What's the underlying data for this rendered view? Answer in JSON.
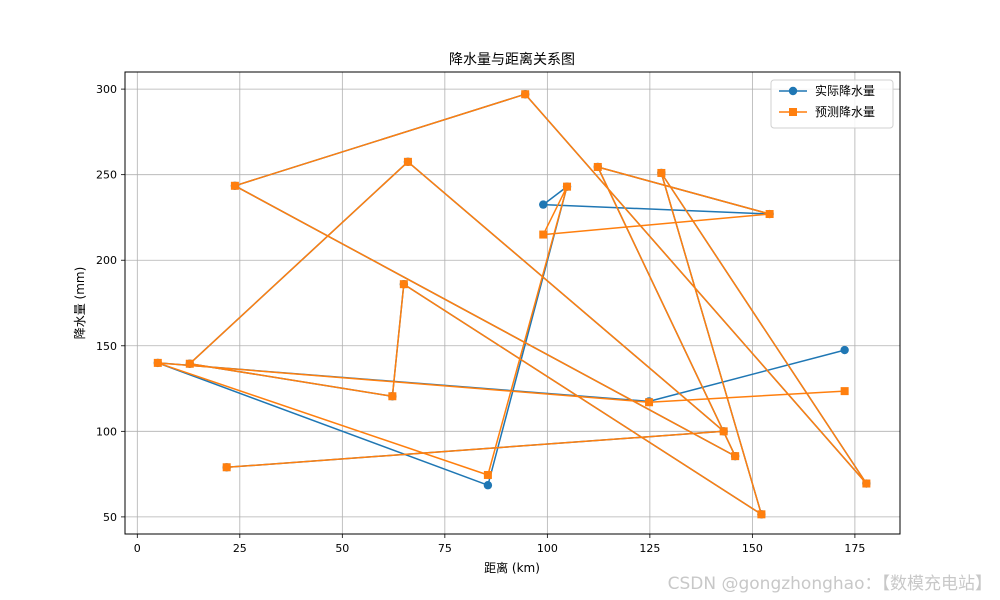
{
  "chart_data": {
    "type": "line",
    "title": "降水量与距离关系图",
    "xlabel": "距离 (km)",
    "ylabel": "降水量 (mm)",
    "xlim": [
      -3,
      186
    ],
    "ylim": [
      40,
      310
    ],
    "xticks": [
      0,
      25,
      50,
      75,
      100,
      125,
      150,
      175
    ],
    "yticks": [
      50,
      100,
      150,
      200,
      250,
      300
    ],
    "grid": true,
    "legend_position": "top-right",
    "series": [
      {
        "name": "实际降水量",
        "color": "#1f77b4",
        "marker": "circle",
        "points": [
          [
            172.5,
            147.5
          ],
          [
            124.8,
            117.5
          ],
          [
            5.0,
            140.0
          ],
          [
            85.5,
            68.5
          ],
          [
            104.8,
            243.0
          ],
          [
            99.0,
            232.5
          ],
          [
            154.2,
            227.0
          ],
          [
            112.3,
            254.5
          ],
          [
            145.8,
            85.5
          ],
          [
            23.8,
            243.5
          ],
          [
            94.6,
            297.0
          ],
          [
            177.8,
            69.5
          ],
          [
            127.8,
            251.0
          ],
          [
            152.2,
            51.5
          ],
          [
            65.0,
            186.0
          ],
          [
            62.2,
            120.5
          ],
          [
            12.8,
            139.5
          ],
          [
            66.0,
            257.5
          ],
          [
            143.0,
            100.0
          ],
          [
            21.8,
            79.0
          ]
        ]
      },
      {
        "name": "预测降水量",
        "color": "#ff7f0e",
        "marker": "square",
        "points": [
          [
            172.5,
            123.5
          ],
          [
            124.8,
            117.0
          ],
          [
            5.0,
            140.0
          ],
          [
            85.5,
            74.5
          ],
          [
            104.8,
            243.0
          ],
          [
            99.0,
            215.0
          ],
          [
            154.2,
            227.0
          ],
          [
            112.3,
            254.5
          ],
          [
            145.8,
            85.5
          ],
          [
            23.8,
            243.5
          ],
          [
            94.6,
            297.0
          ],
          [
            177.8,
            69.5
          ],
          [
            127.8,
            251.0
          ],
          [
            152.2,
            51.5
          ],
          [
            65.0,
            186.0
          ],
          [
            62.2,
            120.5
          ],
          [
            12.8,
            139.5
          ],
          [
            66.0,
            257.5
          ],
          [
            143.0,
            100.0
          ],
          [
            21.8,
            79.0
          ]
        ]
      }
    ]
  },
  "watermark": "CSDN @gongzhonghao：【数模充电站】"
}
